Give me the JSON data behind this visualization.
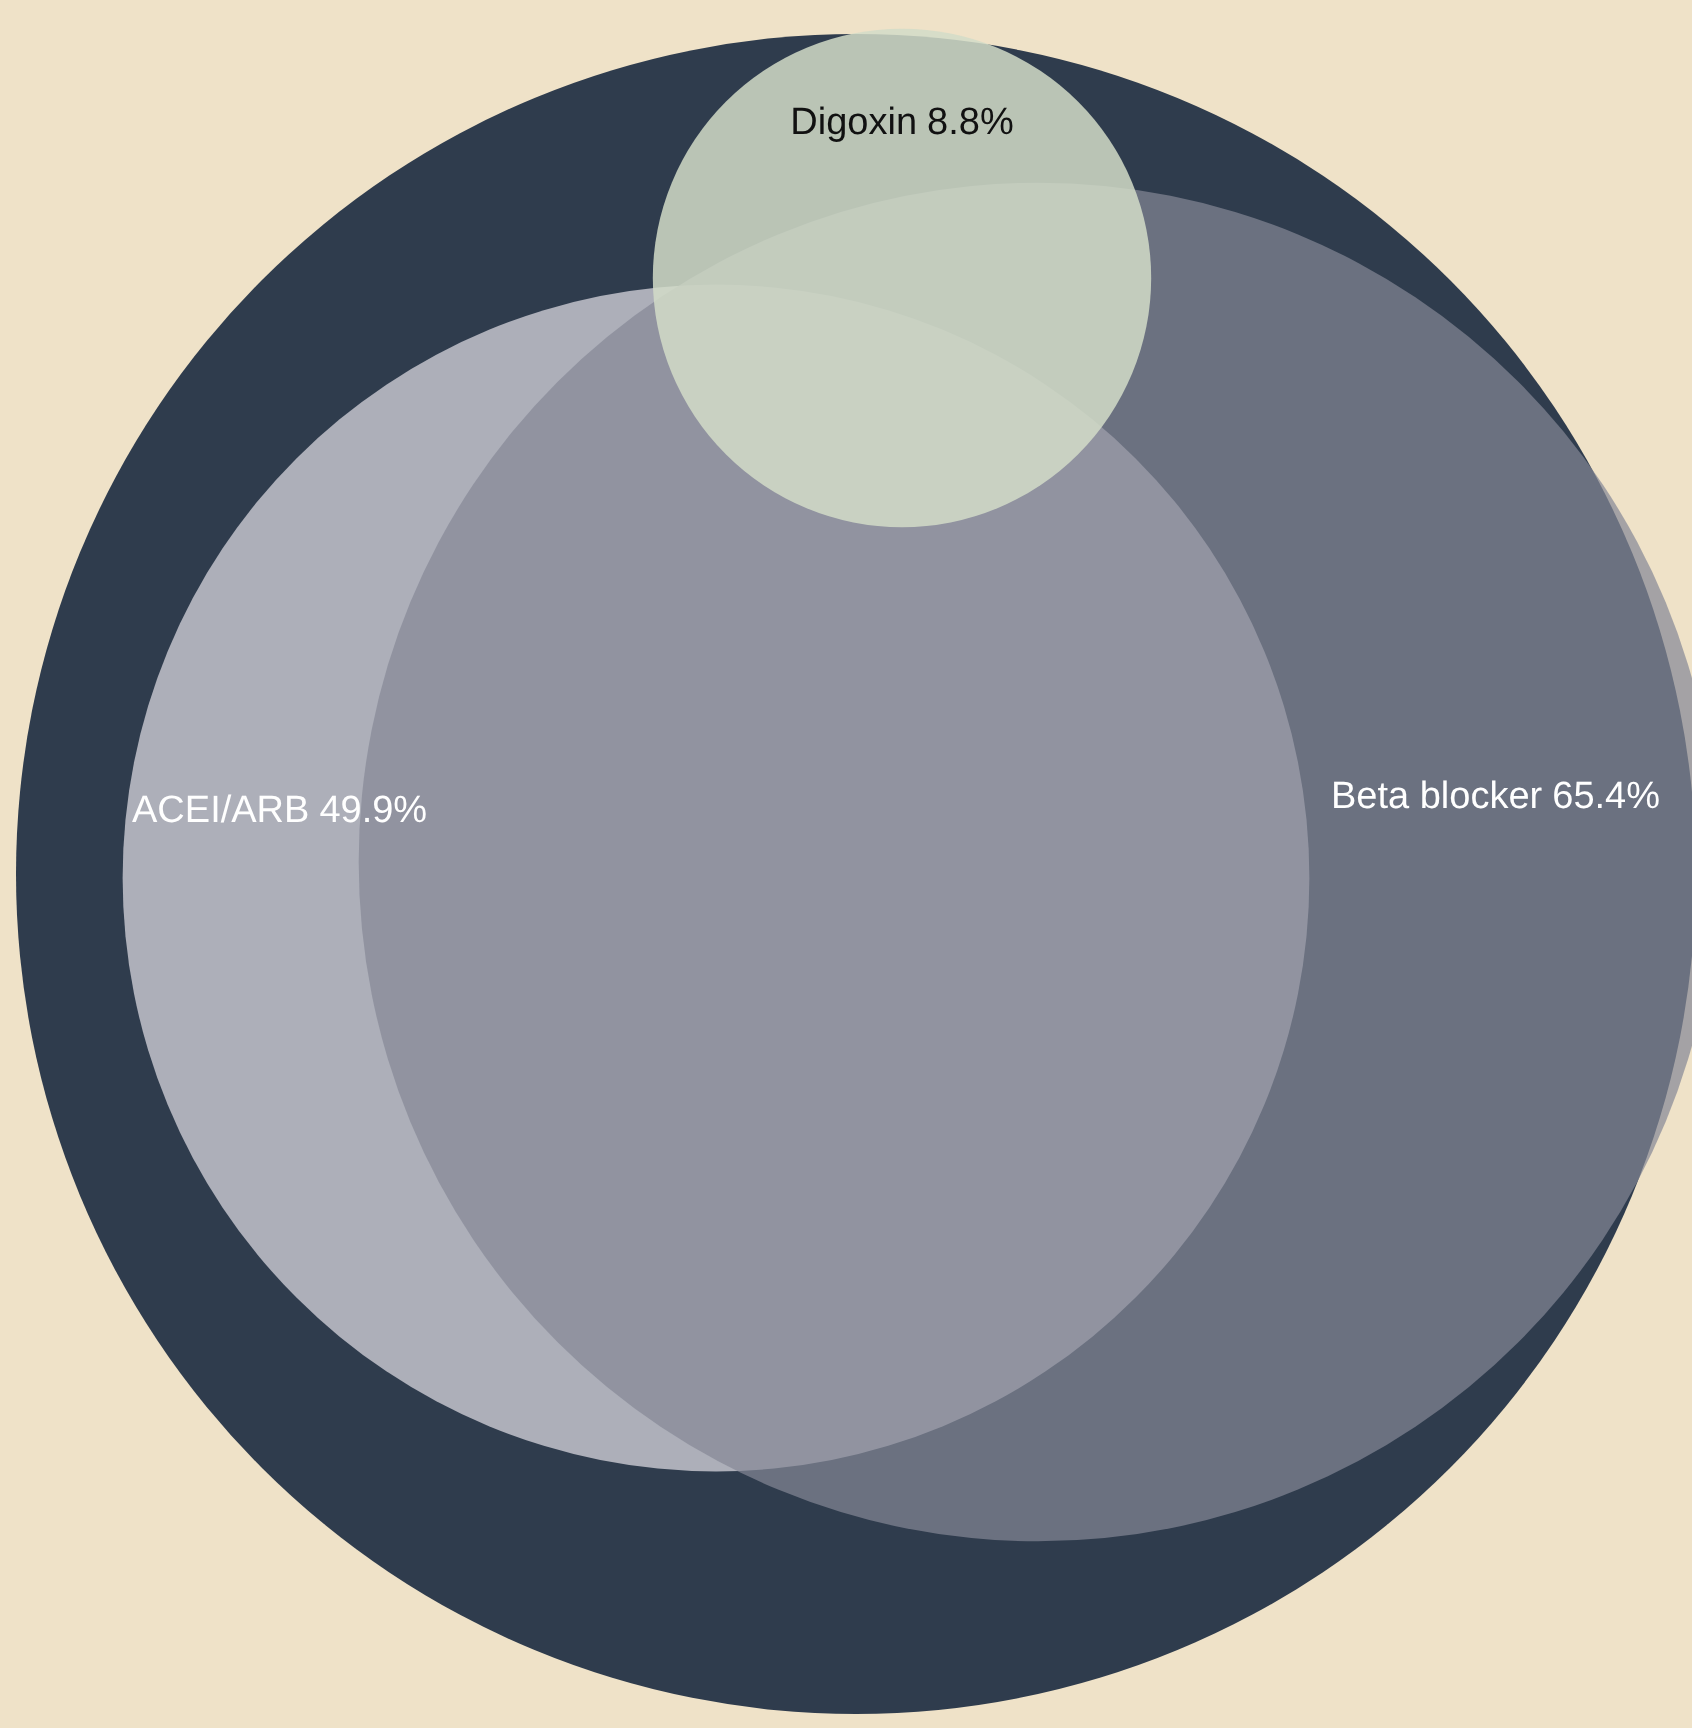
{
  "chart_data": {
    "type": "other",
    "categories": [
      "ACEI/ARB",
      "Beta blocker",
      "Digoxin"
    ],
    "values": [
      49.9,
      65.4,
      8.8
    ],
    "value_labels": [
      "49.9%",
      "65.4%",
      "8.8%"
    ],
    "colors": [
      "#adafb9",
      "#848896",
      "#d2dcc8"
    ]
  }
}
